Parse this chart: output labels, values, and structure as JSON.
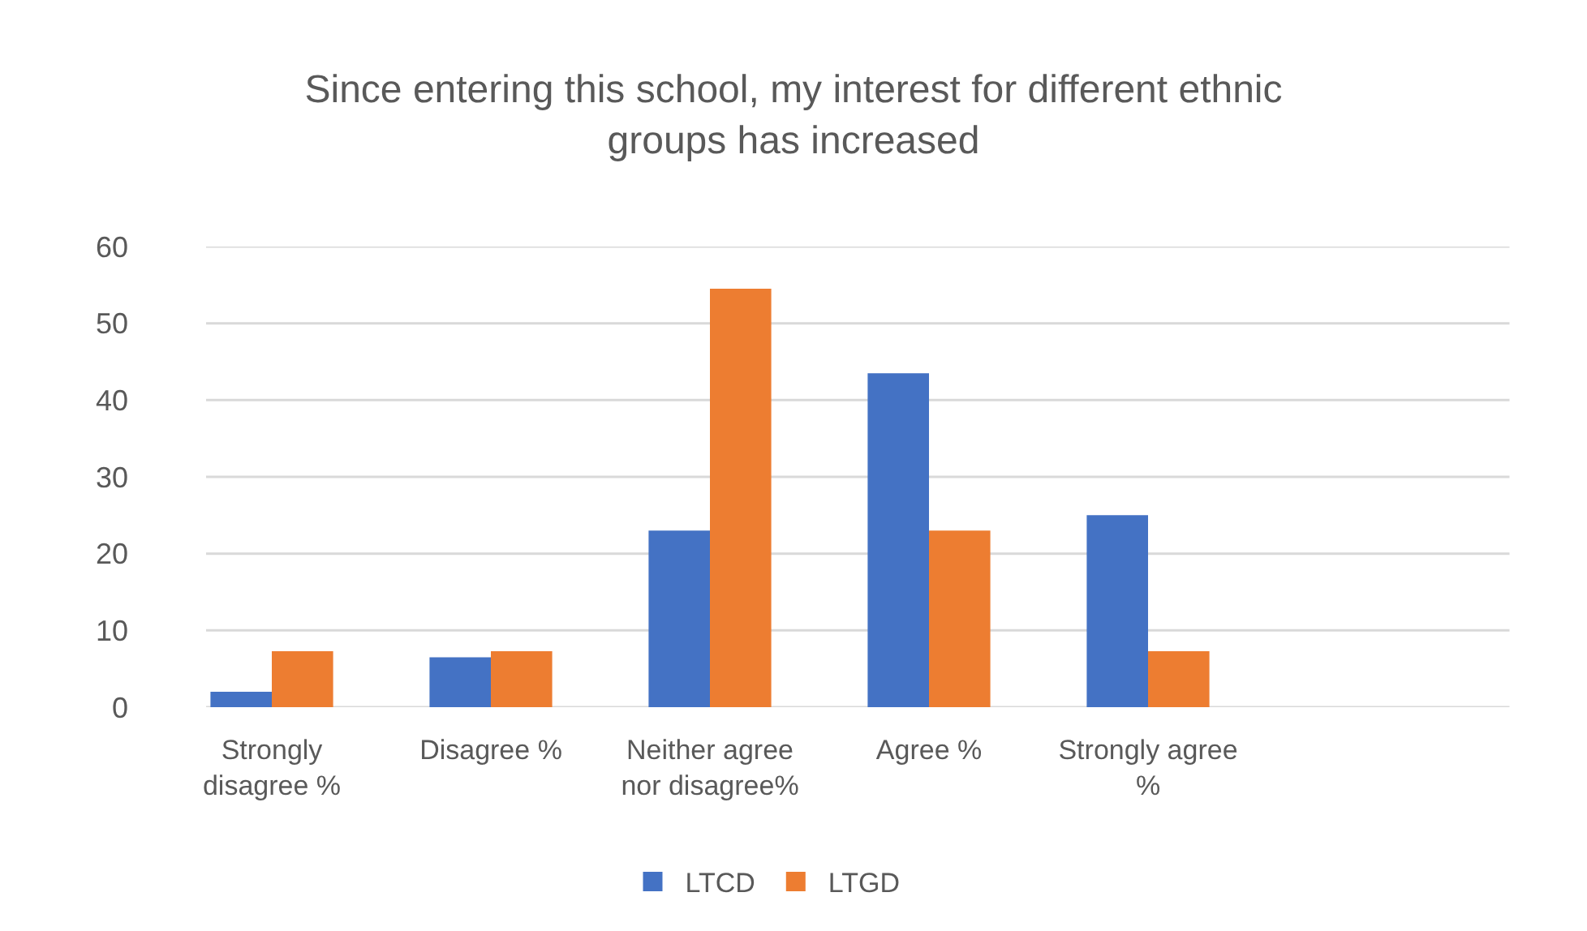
{
  "chart_data": {
    "type": "bar",
    "title": "Since entering this school, my interest for different ethnic groups has increased",
    "categories": [
      "Strongly disagree %",
      "Disagree %",
      "Neither agree nor disagree%",
      "Agree %",
      "Strongly agree %"
    ],
    "series": [
      {
        "name": "LTCD",
        "color": "#4472c4",
        "values": [
          2,
          6.5,
          23,
          43.5,
          25
        ]
      },
      {
        "name": "LTGD",
        "color": "#ed7d31",
        "values": [
          7.3,
          7.3,
          54.5,
          23,
          7.3
        ]
      }
    ],
    "ylim": [
      0,
      60
    ],
    "yticks": [
      0,
      10,
      20,
      30,
      40,
      50,
      60
    ],
    "grid": "y",
    "legend": "bottom"
  }
}
